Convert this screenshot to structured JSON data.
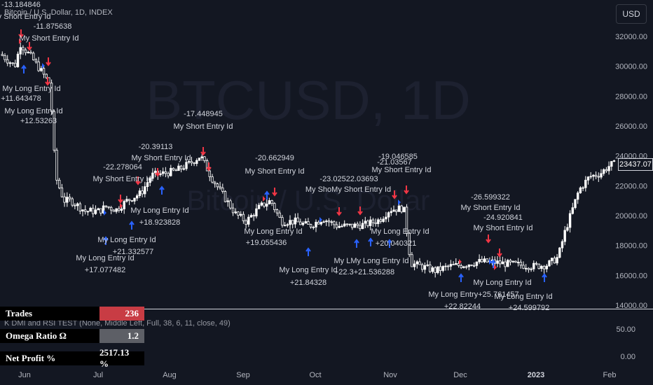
{
  "header": {
    "title": "Bitcoin / U.S. Dollar, 1D, INDEX",
    "currency_button": "USD"
  },
  "watermark": {
    "symbol": "BTCUSD, 1D",
    "name": "Bitcoin / U.S. Dollar"
  },
  "price_axis": {
    "labels": [
      "32000.00",
      "30000.00",
      "28000.00",
      "26000.00",
      "24000.00",
      "22000.00",
      "20000.00",
      "18000.00",
      "16000.00",
      "14000.00"
    ],
    "last_price": "23437.07"
  },
  "lower_pane": {
    "axis_labels": [
      "50.00",
      "0.00"
    ]
  },
  "time_axis": {
    "labels": [
      "Jun",
      "Jul",
      "Aug",
      "Sep",
      "Oct",
      "Nov",
      "Dec",
      "2023",
      "Feb"
    ]
  },
  "indicator": {
    "label": "K DMI and RSI TEST (None, Middle Left, Full, 38, 6, 11, close, 49)"
  },
  "stats_table": [
    {
      "label": "Trades",
      "value": "236",
      "bg": "#c83c44"
    },
    {
      "label": "Omega  Ratio  Ω",
      "value": "1.2",
      "bg": "#5d5f66"
    },
    {
      "label": "Net  Profit  %",
      "value": "2517.13 %",
      "bg": "#000000"
    }
  ],
  "trade_labels": [
    {
      "text": "-13.184846",
      "color": "#d1d4dc"
    },
    {
      "text": "My Short Entry Id",
      "color": "#d1d4dc"
    },
    {
      "text": "-11.875638",
      "color": "#d1d4dc"
    },
    {
      "text": "My Short Entry Id",
      "color": "#d1d4dc"
    },
    {
      "text": "My Long Entry Id",
      "color": "#d1d4dc"
    },
    {
      "text": "+11.643478",
      "color": "#d1d4dc"
    },
    {
      "text": "My Long Entry Id",
      "color": "#d1d4dc"
    },
    {
      "text": "+12.53263",
      "color": "#d1d4dc"
    },
    {
      "text": "-17.448945",
      "color": "#d1d4dc"
    },
    {
      "text": "My Short Entry Id",
      "color": "#d1d4dc"
    },
    {
      "text": "-20.39113",
      "color": "#d1d4dc"
    },
    {
      "text": "My Short Entry Id",
      "color": "#d1d4dc"
    },
    {
      "text": "-22.278064",
      "color": "#d1d4dc"
    },
    {
      "text": "My Short Entry Id",
      "color": "#d1d4dc"
    },
    {
      "text": "My Long Entry Id",
      "color": "#d1d4dc"
    },
    {
      "text": "+18.923828",
      "color": "#d1d4dc"
    },
    {
      "text": "My Long Entry Id",
      "color": "#d1d4dc"
    },
    {
      "text": "+21.332577",
      "color": "#d1d4dc"
    },
    {
      "text": "My Long Entry Id",
      "color": "#d1d4dc"
    },
    {
      "text": "+17.077482",
      "color": "#d1d4dc"
    },
    {
      "text": "-20.662949",
      "color": "#d1d4dc"
    },
    {
      "text": "My Short Entry Id",
      "color": "#d1d4dc"
    },
    {
      "text": "My Long Entry Id",
      "color": "#d1d4dc"
    },
    {
      "text": "+19.055436",
      "color": "#d1d4dc"
    },
    {
      "text": "My Long Entry Id",
      "color": "#d1d4dc"
    },
    {
      "text": "+21.84328",
      "color": "#d1d4dc"
    },
    {
      "text": "-23.02522.03693",
      "color": "#d1d4dc"
    },
    {
      "text": "My ShoMy Short Entry Id",
      "color": "#d1d4dc"
    },
    {
      "text": "-21.03567",
      "color": "#d1d4dc"
    },
    {
      "text": "-19.046585",
      "color": "#d1d4dc"
    },
    {
      "text": "My Short Entry Id",
      "color": "#d1d4dc"
    },
    {
      "text": "My Long Entry Id",
      "color": "#d1d4dc"
    },
    {
      "text": "+20.040321",
      "color": "#d1d4dc"
    },
    {
      "text": "My LMy Long Entry Id",
      "color": "#d1d4dc"
    },
    {
      "text": "+22.3+21.536288",
      "color": "#d1d4dc"
    },
    {
      "text": "-26.599322",
      "color": "#d1d4dc"
    },
    {
      "text": "My Short Entry Id",
      "color": "#d1d4dc"
    },
    {
      "text": "-24.920841",
      "color": "#d1d4dc"
    },
    {
      "text": "My Short Entry Id",
      "color": "#d1d4dc"
    },
    {
      "text": "My Long Entry Id",
      "color": "#d1d4dc"
    },
    {
      "text": "My Long Entry+25.761457",
      "color": "#d1d4dc"
    },
    {
      "text": "+22.82244",
      "color": "#d1d4dc"
    },
    {
      "text": "My Long Entry Id",
      "color": "#d1d4dc"
    },
    {
      "text": "+24.599792",
      "color": "#d1d4dc"
    }
  ],
  "colors": {
    "background": "#131722",
    "candle_up": "#ffffff",
    "candle_down": "#ffffff",
    "short_arrow": "#f23645",
    "long_arrow": "#2962ff",
    "grid": "#1e222d"
  }
}
